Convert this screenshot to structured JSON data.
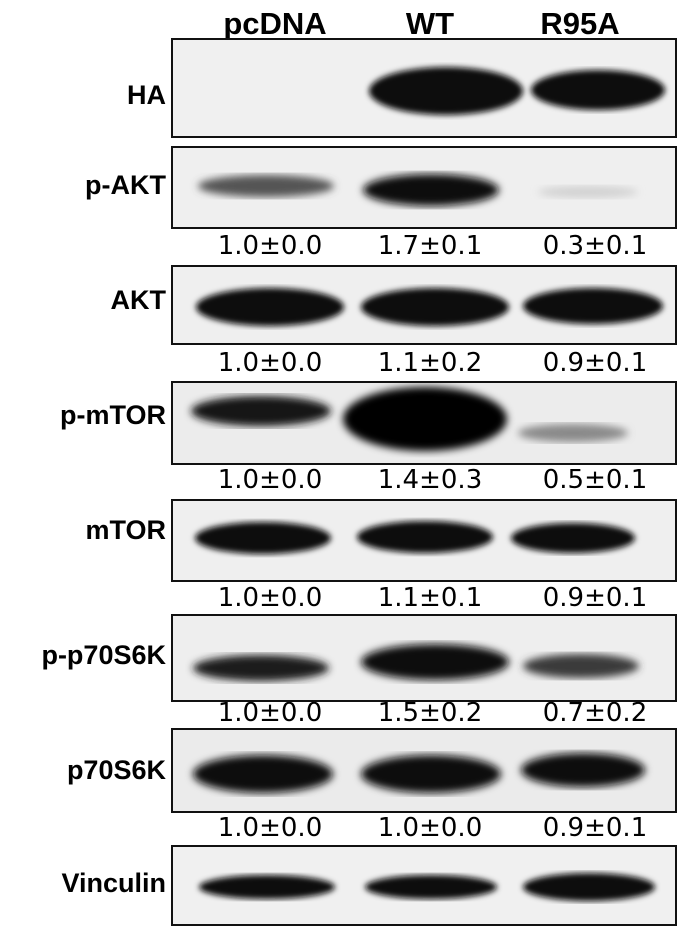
{
  "lanes": [
    "pcDNA",
    "WT",
    "R95A"
  ],
  "rows": [
    {
      "label": "HA",
      "quant": null
    },
    {
      "label": "p-AKT",
      "quant": [
        "1.0±0.0",
        "1.7±0.1",
        "0.3±0.1"
      ]
    },
    {
      "label": "AKT",
      "quant": [
        "1.0±0.0",
        "1.1±0.2",
        "0.9±0.1"
      ]
    },
    {
      "label": "p-mTOR",
      "quant": [
        "1.0±0.0",
        "1.4±0.3",
        "0.5±0.1"
      ]
    },
    {
      "label": "mTOR",
      "quant": [
        "1.0±0.0",
        "1.1±0.1",
        "0.9±0.1"
      ]
    },
    {
      "label": "p-p70S6K",
      "quant": [
        "1.0±0.0",
        "1.5±0.2",
        "0.7±0.2"
      ]
    },
    {
      "label": "p70S6K",
      "quant": [
        "1.0±0.0",
        "1.0±0.0",
        "0.9±0.1"
      ]
    },
    {
      "label": "Vinculin",
      "quant": null
    }
  ]
}
